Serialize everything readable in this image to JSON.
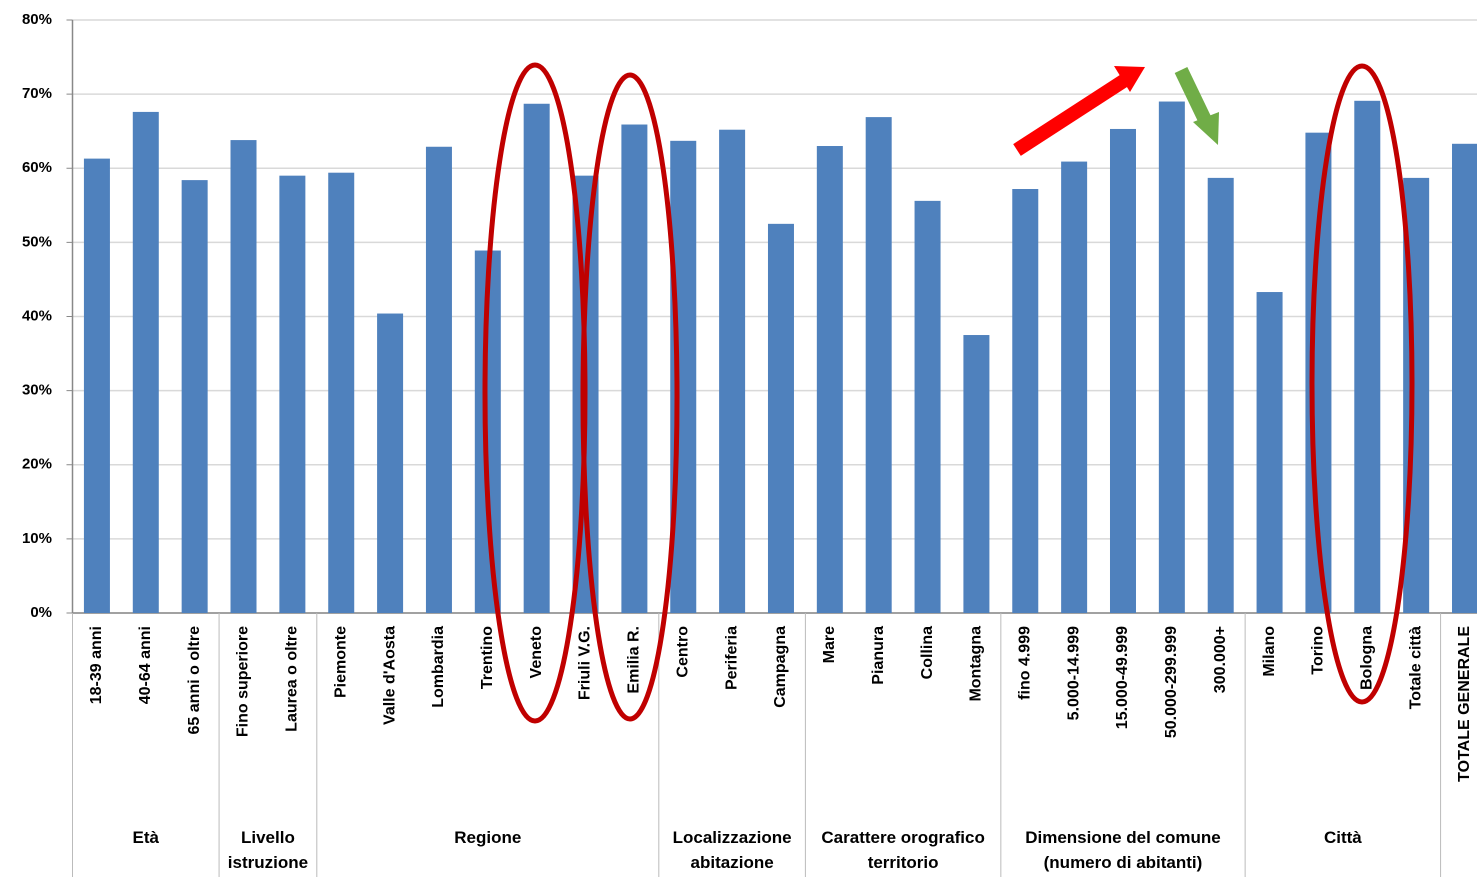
{
  "chart_data": {
    "type": "bar",
    "categories": [
      "18-39 anni",
      "40-64 anni",
      "65 anni o oltre",
      "Fino superiore",
      "Laurea o oltre",
      "Piemonte",
      "Valle d'Aosta",
      "Lombardia",
      "Trentino",
      "Veneto",
      "Friuli V.G.",
      "Emilia R.",
      "Centro",
      "Periferia",
      "Campagna",
      "Mare",
      "Pianura",
      "Collina",
      "Montagna",
      "fino 4.999",
      "5.000-14.999",
      "15.000-49.999",
      "50.000-299.999",
      "300.000+",
      "Milano",
      "Torino",
      "Bologna",
      "Totale città",
      "TOTALE GENERALE"
    ],
    "values": [
      61.3,
      67.6,
      58.4,
      63.8,
      59.0,
      59.4,
      40.4,
      62.9,
      48.9,
      68.7,
      59.0,
      65.9,
      63.7,
      65.2,
      52.5,
      63.0,
      66.9,
      55.6,
      37.5,
      57.2,
      60.9,
      65.3,
      69.0,
      58.7,
      43.3,
      64.8,
      69.1,
      58.7,
      63.3
    ],
    "groups": [
      {
        "lines": [
          "Età"
        ],
        "count": 3
      },
      {
        "lines": [
          "Livello",
          "istruzione"
        ],
        "count": 2
      },
      {
        "lines": [
          "Regione"
        ],
        "count": 7
      },
      {
        "lines": [
          "Localizzazione",
          "abitazione"
        ],
        "count": 3
      },
      {
        "lines": [
          "Carattere orografico",
          "territorio"
        ],
        "count": 4
      },
      {
        "lines": [
          "Dimensione del comune",
          "(numero di abitanti)"
        ],
        "count": 5
      },
      {
        "lines": [
          "Città"
        ],
        "count": 4
      },
      {
        "lines": [],
        "count": 1
      }
    ],
    "color": "#4f81bd",
    "ylim": [
      0,
      80
    ],
    "yticks": [
      {
        "value": 0,
        "label": "0%"
      },
      {
        "value": 10,
        "label": "10%"
      },
      {
        "value": 20,
        "label": "20%"
      },
      {
        "value": 30,
        "label": "30%"
      },
      {
        "value": 40,
        "label": "40%"
      },
      {
        "value": 50,
        "label": "50%"
      },
      {
        "value": 60,
        "label": "60%"
      },
      {
        "value": 70,
        "label": "70%"
      },
      {
        "value": 80,
        "label": "80%"
      }
    ],
    "grid": true
  }
}
